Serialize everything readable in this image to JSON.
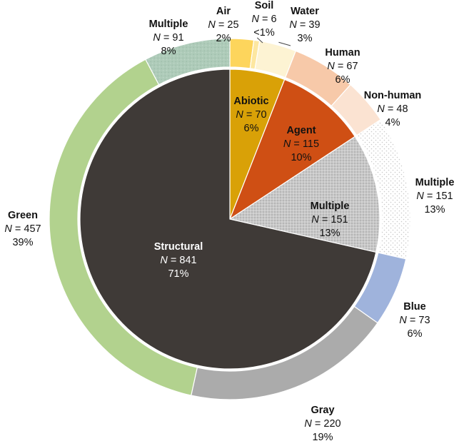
{
  "chart_data": {
    "type": "pie",
    "title": "",
    "colors": {
      "background": "#ffffff",
      "divider": "#ffffff",
      "leader": "#444444",
      "label_dark": "#111111",
      "label_light": "#ffffff"
    },
    "inner_ring": {
      "segments": [
        {
          "key": "abiotic",
          "name": "Abiotic",
          "n_label": "N = 70",
          "percent_label": "6%",
          "value": 70,
          "color": "#d9a107",
          "label_color": "#111111"
        },
        {
          "key": "agent",
          "name": "Agent",
          "n_label": "N = 115",
          "percent_label": "10%",
          "value": 115,
          "color": "#cf4f14",
          "label_color": "#111111"
        },
        {
          "key": "multiple",
          "name": "Multiple",
          "n_label": "N = 151",
          "percent_label": "13%",
          "value": 151,
          "color": "#c4c4c4",
          "label_color": "#111111",
          "pattern": "dots"
        },
        {
          "key": "structural",
          "name": "Structural",
          "n_label": "N = 841",
          "percent_label": "71%",
          "value": 841,
          "color": "#3f3a37",
          "label_color": "#ffffff"
        }
      ]
    },
    "outer_ring": {
      "segments": [
        {
          "key": "air",
          "name": "Air",
          "n_label": "N = 25",
          "percent_label": "2%",
          "value": 25,
          "color": "#fdd55c"
        },
        {
          "key": "soil",
          "name": "Soil",
          "n_label": "N = 6",
          "percent_label": "<1%",
          "value": 6,
          "color": "#fde7a0"
        },
        {
          "key": "water",
          "name": "Water",
          "n_label": "N = 39",
          "percent_label": "3%",
          "value": 39,
          "color": "#fdf3d3"
        },
        {
          "key": "human",
          "name": "Human",
          "n_label": "N = 67",
          "percent_label": "6%",
          "value": 67,
          "color": "#f7c9a9"
        },
        {
          "key": "nonhuman",
          "name": "Non-human",
          "n_label": "N = 48",
          "percent_label": "4%",
          "value": 48,
          "color": "#fbe3d2"
        },
        {
          "key": "multiple_o",
          "name": "Multiple",
          "n_label": "N = 151",
          "percent_label": "13%",
          "value": 151,
          "color": "#f2f2f2",
          "pattern": "lightdots"
        },
        {
          "key": "blue",
          "name": "Blue",
          "n_label": "N = 73",
          "percent_label": "6%",
          "value": 73,
          "color": "#9fb3dc"
        },
        {
          "key": "gray",
          "name": "Gray",
          "n_label": "N = 220",
          "percent_label": "19%",
          "value": 220,
          "color": "#ababab"
        },
        {
          "key": "green",
          "name": "Green",
          "n_label": "N = 457",
          "percent_label": "39%",
          "value": 457,
          "color": "#b2d28e"
        },
        {
          "key": "multiple_g",
          "name": "Multiple",
          "n_label": "N = 91",
          "percent_label": "8%",
          "value": 91,
          "color": "#aecbb9",
          "pattern": "lightdots"
        }
      ]
    }
  }
}
